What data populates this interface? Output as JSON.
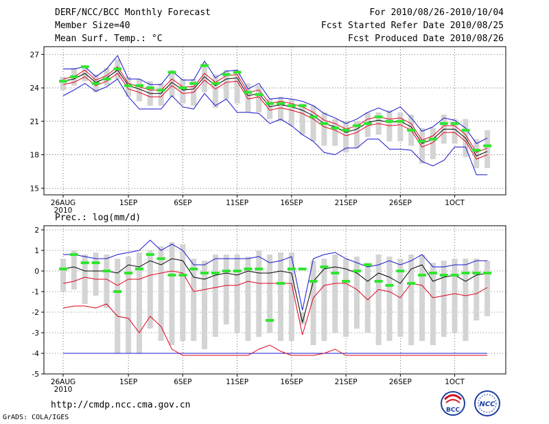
{
  "header": {
    "title": "DERF/NCC/BCC Monthly Forecast",
    "member_size": "Member Size=40",
    "variable": "Mean Surf. Temp.: °C",
    "period": "For 2010/08/26-2010/10/04",
    "started": "Fcst Started Refer Date 2010/08/25",
    "produced": "Fcst Produced Date 2010/08/26"
  },
  "prec_label": "Prec.: log(mm/d)",
  "url": "http://cmdp.ncc.cma.gov.cn",
  "grads": "GrADS: COLA/IGES",
  "logos": {
    "bcc": "BCC",
    "ncc": "NCC"
  },
  "colors": {
    "box": "#d4d4d4",
    "mean": "#000000",
    "red": "#e0001e",
    "blue": "#1414cc",
    "green": "#2ee62e"
  },
  "chart_data": [
    {
      "type": "line",
      "title": "Mean Surf. Temp.: °C",
      "x_day_index": [
        0,
        1,
        2,
        3,
        4,
        5,
        6,
        7,
        8,
        9,
        10,
        11,
        12,
        13,
        14,
        15,
        16,
        17,
        18,
        19,
        20,
        21,
        22,
        23,
        24,
        25,
        26,
        27,
        28,
        29,
        30,
        31,
        32,
        33,
        34,
        35,
        36,
        37,
        38,
        39
      ],
      "x_ticks": [
        {
          "day": 0,
          "label": "26AUG",
          "sub": "2010"
        },
        {
          "day": 6,
          "label": "1SEP",
          "sub": ""
        },
        {
          "day": 11,
          "label": "6SEP",
          "sub": ""
        },
        {
          "day": 16,
          "label": "11SEP",
          "sub": ""
        },
        {
          "day": 21,
          "label": "16SEP",
          "sub": ""
        },
        {
          "day": 26,
          "label": "21SEP",
          "sub": ""
        },
        {
          "day": 31,
          "label": "26SEP",
          "sub": ""
        },
        {
          "day": 36,
          "label": "1OCT",
          "sub": ""
        }
      ],
      "ylim": [
        14.4,
        27.7
      ],
      "y_ticks": [
        15,
        18,
        21,
        24,
        27
      ],
      "series": [
        {
          "name": "mean",
          "values": [
            24.6,
            24.8,
            25.3,
            24.5,
            24.9,
            25.6,
            24.2,
            23.9,
            23.5,
            23.5,
            24.5,
            23.8,
            23.9,
            25.0,
            24.2,
            24.8,
            24.9,
            23.3,
            23.5,
            22.3,
            22.5,
            22.3,
            22.0,
            21.5,
            20.8,
            20.5,
            20.0,
            20.3,
            20.9,
            21.1,
            20.9,
            21.0,
            20.5,
            19.0,
            19.4,
            20.3,
            20.3,
            19.5,
            17.9,
            18.3
          ]
        },
        {
          "name": "upper_red",
          "values": [
            24.8,
            25.0,
            25.6,
            24.7,
            25.1,
            25.9,
            24.4,
            24.1,
            23.8,
            23.8,
            24.8,
            24.1,
            24.1,
            25.3,
            24.5,
            25.1,
            25.2,
            23.6,
            23.8,
            22.6,
            22.8,
            22.6,
            22.3,
            21.8,
            21.1,
            20.8,
            20.3,
            20.6,
            21.2,
            21.4,
            21.2,
            21.3,
            20.8,
            19.3,
            19.7,
            20.6,
            20.6,
            19.8,
            18.2,
            18.6
          ]
        },
        {
          "name": "lower_red",
          "values": [
            24.3,
            24.5,
            25.0,
            24.2,
            24.6,
            25.3,
            23.9,
            23.6,
            23.2,
            23.2,
            24.2,
            23.5,
            23.6,
            24.7,
            23.9,
            24.5,
            24.6,
            23.0,
            23.2,
            22.0,
            22.2,
            22.0,
            21.7,
            21.2,
            20.5,
            20.2,
            19.7,
            20.0,
            20.6,
            20.8,
            20.6,
            20.7,
            20.2,
            18.7,
            19.1,
            20.0,
            20.0,
            19.2,
            17.6,
            18.0
          ]
        },
        {
          "name": "upper_blue",
          "values": [
            25.7,
            25.7,
            25.9,
            25.0,
            25.7,
            26.9,
            24.8,
            24.8,
            24.3,
            24.3,
            25.5,
            24.7,
            24.7,
            26.4,
            24.9,
            25.5,
            25.6,
            23.9,
            24.4,
            23.0,
            23.1,
            23.0,
            22.8,
            22.4,
            21.7,
            21.3,
            20.8,
            21.2,
            21.8,
            22.2,
            21.8,
            22.3,
            21.3,
            20.1,
            20.5,
            21.3,
            21.1,
            20.4,
            19.0,
            19.5
          ]
        },
        {
          "name": "lower_blue",
          "values": [
            23.3,
            23.8,
            24.4,
            23.7,
            24.1,
            24.8,
            23.2,
            22.1,
            22.1,
            22.1,
            23.3,
            22.3,
            22.1,
            23.5,
            22.4,
            23.0,
            21.8,
            21.8,
            21.7,
            20.8,
            21.2,
            20.6,
            19.8,
            19.2,
            18.2,
            18.0,
            18.6,
            18.6,
            19.4,
            19.4,
            18.5,
            18.5,
            18.4,
            17.4,
            17.0,
            17.5,
            18.7,
            18.7,
            16.2,
            16.2
          ]
        },
        {
          "name": "box_high",
          "values": [
            25.0,
            25.8,
            26.0,
            25.2,
            25.8,
            26.6,
            25.0,
            24.8,
            24.6,
            24.4,
            25.6,
            24.8,
            24.8,
            26.2,
            25.2,
            25.6,
            25.6,
            24.4,
            24.2,
            23.0,
            23.2,
            23.0,
            22.6,
            22.4,
            21.8,
            21.2,
            21.0,
            21.0,
            21.8,
            21.8,
            22.0,
            21.8,
            21.6,
            20.4,
            20.4,
            21.6,
            21.2,
            21.2,
            19.4,
            20.2
          ]
        },
        {
          "name": "box_low",
          "values": [
            23.8,
            24.2,
            24.6,
            23.6,
            24.2,
            24.8,
            23.2,
            22.8,
            22.4,
            22.4,
            23.2,
            22.6,
            22.4,
            23.6,
            22.2,
            23.0,
            22.6,
            21.8,
            21.8,
            21.2,
            21.0,
            20.6,
            19.8,
            19.2,
            18.8,
            18.8,
            18.2,
            18.6,
            19.6,
            19.8,
            19.2,
            19.2,
            18.8,
            17.2,
            17.6,
            19.0,
            19.0,
            17.8,
            16.8,
            16.8
          ]
        },
        {
          "name": "green_marks",
          "values": [
            24.6,
            25.0,
            25.9,
            24.4,
            24.8,
            25.7,
            24.2,
            24.2,
            24.0,
            23.8,
            25.4,
            24.0,
            24.4,
            26.0,
            24.4,
            25.2,
            25.4,
            23.6,
            23.4,
            22.6,
            22.6,
            22.4,
            22.4,
            21.4,
            20.8,
            20.4,
            20.2,
            20.6,
            20.8,
            21.4,
            21.0,
            21.0,
            20.2,
            19.2,
            19.4,
            20.8,
            20.8,
            20.2,
            18.4,
            18.8
          ]
        }
      ]
    },
    {
      "type": "line",
      "title": "Prec.: log(mm/d)",
      "x_ticks": [
        {
          "day": 0,
          "label": "26AUG",
          "sub": "2010"
        },
        {
          "day": 6,
          "label": "1SEP",
          "sub": ""
        },
        {
          "day": 11,
          "label": "6SEP",
          "sub": ""
        },
        {
          "day": 16,
          "label": "11SEP",
          "sub": ""
        },
        {
          "day": 21,
          "label": "16SEP",
          "sub": ""
        },
        {
          "day": 26,
          "label": "21SEP",
          "sub": ""
        },
        {
          "day": 31,
          "label": "26SEP",
          "sub": ""
        },
        {
          "day": 36,
          "label": "1OCT",
          "sub": ""
        }
      ],
      "ylim": [
        -5,
        2.2
      ],
      "y_ticks": [
        -5,
        -4,
        -3,
        -2,
        -1,
        0,
        1,
        2
      ],
      "series": [
        {
          "name": "mean",
          "values": [
            0.1,
            0.2,
            0.0,
            0.0,
            0.0,
            -0.1,
            0.3,
            0.2,
            0.5,
            0.3,
            0.6,
            0.5,
            -0.3,
            -0.4,
            -0.2,
            -0.1,
            -0.2,
            0.0,
            -0.1,
            -0.1,
            0.0,
            -0.1,
            -2.5,
            -0.5,
            0.1,
            0.2,
            0.1,
            -0.1,
            -0.5,
            -0.1,
            -0.3,
            -0.6,
            0.1,
            0.3,
            -0.5,
            -0.3,
            -0.2,
            -0.5,
            -0.2,
            -0.1
          ]
        },
        {
          "name": "upper_red",
          "values": [
            -0.6,
            -0.5,
            -0.3,
            -0.4,
            -0.4,
            -0.7,
            -0.4,
            -0.4,
            -0.2,
            -0.1,
            0.0,
            -0.1,
            -1.0,
            -0.9,
            -0.8,
            -0.7,
            -0.7,
            -0.5,
            -0.6,
            -0.6,
            -0.6,
            -0.6,
            -3.1,
            -1.3,
            -0.7,
            -0.6,
            -0.6,
            -0.9,
            -1.4,
            -0.9,
            -1.0,
            -1.3,
            -0.6,
            -0.7,
            -1.3,
            -1.2,
            -1.1,
            -1.2,
            -1.1,
            -0.8
          ]
        },
        {
          "name": "lower_red",
          "values": [
            -1.8,
            -1.7,
            -1.7,
            -1.8,
            -1.6,
            -2.2,
            -2.3,
            -3.0,
            -2.2,
            -2.7,
            -3.8,
            -4.1,
            -4.1,
            -4.1,
            -4.1,
            -4.1,
            -4.1,
            -4.1,
            -3.8,
            -3.6,
            -3.9,
            -4.1,
            -4.1,
            -4.1,
            -4.0,
            -3.8,
            -4.1,
            -4.1,
            -4.1,
            -4.1,
            -4.1,
            -4.1,
            -4.1,
            -4.1,
            -4.1,
            -4.1,
            -4.1,
            -4.1,
            -4.1,
            -4.1
          ]
        },
        {
          "name": "upper_blue",
          "values": [
            0.8,
            0.8,
            0.7,
            0.6,
            0.6,
            0.8,
            0.9,
            1.0,
            1.5,
            1.0,
            1.3,
            1.0,
            0.3,
            0.3,
            0.6,
            0.6,
            0.6,
            0.6,
            0.7,
            0.4,
            0.5,
            0.7,
            -1.9,
            0.6,
            0.8,
            0.9,
            0.6,
            0.4,
            0.2,
            0.3,
            0.5,
            0.3,
            0.5,
            0.8,
            0.2,
            0.2,
            0.3,
            0.3,
            0.5,
            0.5
          ]
        },
        {
          "name": "lower_blue",
          "values": [
            -4.0,
            -4.0,
            -4.0,
            -4.0,
            -4.0,
            -4.0,
            -4.0,
            -4.0,
            -4.0,
            -4.0,
            -4.0,
            -4.0,
            -4.0,
            -4.0,
            -4.0,
            -4.0,
            -4.0,
            -4.0,
            -4.0,
            -4.0,
            -4.0,
            -4.0,
            -4.0,
            -4.0,
            -4.0,
            -4.0,
            -4.0,
            -4.0,
            -4.0,
            -4.0,
            -4.0,
            -4.0,
            -4.0,
            -4.0,
            -4.0,
            -4.0,
            -4.0,
            -4.0,
            -4.0,
            -4.0
          ]
        },
        {
          "name": "box_high",
          "values": [
            0.6,
            1.0,
            0.8,
            0.9,
            0.8,
            0.6,
            0.7,
            0.9,
            1.0,
            1.2,
            1.4,
            1.3,
            0.6,
            0.5,
            0.8,
            0.8,
            0.8,
            0.7,
            1.0,
            0.8,
            0.9,
            0.9,
            -2.0,
            0.5,
            0.6,
            0.8,
            0.6,
            0.7,
            0.4,
            0.8,
            0.7,
            0.6,
            0.8,
            0.8,
            0.4,
            0.5,
            0.6,
            0.6,
            0.6,
            0.5
          ]
        },
        {
          "name": "box_low",
          "values": [
            -1.0,
            -0.9,
            -1.6,
            -1.2,
            -1.8,
            -4.0,
            -4.0,
            -4.0,
            -2.8,
            -3.4,
            -3.6,
            -3.4,
            -3.4,
            -3.8,
            -3.2,
            -2.6,
            -3.0,
            -3.4,
            -3.2,
            -3.0,
            -3.4,
            -3.4,
            -2.6,
            -3.6,
            -3.4,
            -3.0,
            -3.2,
            -2.8,
            -3.0,
            -3.6,
            -3.4,
            -3.2,
            -3.6,
            -3.4,
            -3.6,
            -3.2,
            -3.0,
            -3.4,
            -2.4,
            -2.2
          ]
        },
        {
          "name": "green_marks",
          "values": [
            0.1,
            0.8,
            0.4,
            0.4,
            0.0,
            -1.0,
            -0.1,
            0.1,
            0.8,
            0.6,
            -0.2,
            -0.2,
            0.1,
            -0.1,
            -0.1,
            0.0,
            0.0,
            0.1,
            0.1,
            -2.4,
            -0.6,
            0.1,
            0.1,
            -0.5,
            0.2,
            -0.1,
            -0.5,
            0.0,
            0.3,
            -0.5,
            -0.7,
            0.0,
            -0.6,
            -0.2,
            -0.1,
            -0.2,
            -0.2,
            -0.1,
            -0.1,
            -0.1
          ]
        }
      ]
    }
  ]
}
